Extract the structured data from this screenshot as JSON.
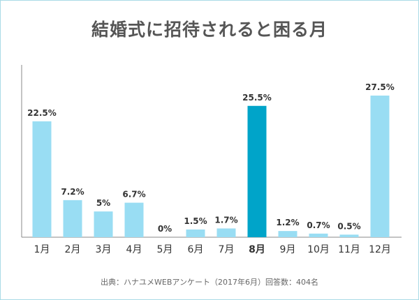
{
  "chart_data": {
    "type": "bar",
    "title": "結婚式に招待されると困る月",
    "categories": [
      "1月",
      "2月",
      "3月",
      "4月",
      "5月",
      "6月",
      "7月",
      "8月",
      "9月",
      "10月",
      "11月",
      "12月"
    ],
    "values": [
      22.5,
      7.2,
      5,
      6.7,
      0,
      1.5,
      1.7,
      25.5,
      1.2,
      0.7,
      0.5,
      27.5
    ],
    "value_labels": [
      "22.5%",
      "7.2%",
      "5%",
      "6.7%",
      "0%",
      "1.5%",
      "1.7%",
      "25.5%",
      "1.2%",
      "0.7%",
      "0.5%",
      "27.5%"
    ],
    "unit": "%",
    "highlight_category": "8月",
    "colors": {
      "bar": "#99ddf3",
      "highlight": "#00a4c9",
      "axis": "#888888",
      "text": "#333333"
    },
    "grid": false,
    "legend": "none",
    "source": "出典：ハナユメWEBアンケート（2017年6月）回答数：404名"
  }
}
